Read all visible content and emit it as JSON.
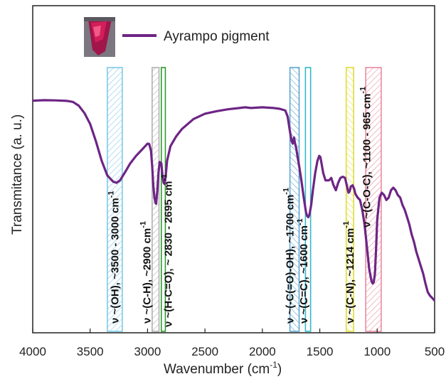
{
  "chart_data": {
    "type": "line",
    "xlabel": "Wavenumber (cm",
    "xlabel_sup": "-1",
    "xlabel_end": ")",
    "ylabel": "Transmitance (a. u.)",
    "xlim": [
      4000,
      500
    ],
    "ylim": [
      0,
      1
    ],
    "x_ticks": [
      4000,
      3500,
      3000,
      2500,
      2000,
      1500,
      1000,
      500
    ],
    "legend": {
      "position": "top-left",
      "label": "Ayrampo pigment",
      "color": "#6d2585"
    },
    "series": [
      {
        "name": "Ayrampo pigment",
        "color": "#6d2585",
        "x": [
          4000,
          3900,
          3800,
          3700,
          3650,
          3600,
          3550,
          3500,
          3450,
          3400,
          3350,
          3300,
          3270,
          3240,
          3200,
          3150,
          3100,
          3050,
          3020,
          3000,
          2985,
          2970,
          2960,
          2950,
          2940,
          2930,
          2925,
          2915,
          2905,
          2895,
          2880,
          2870,
          2860,
          2850,
          2840,
          2830,
          2800,
          2750,
          2700,
          2600,
          2500,
          2400,
          2300,
          2200,
          2150,
          2100,
          2000,
          1900,
          1850,
          1800,
          1780,
          1760,
          1745,
          1735,
          1725,
          1715,
          1705,
          1695,
          1680,
          1660,
          1640,
          1620,
          1610,
          1600,
          1590,
          1575,
          1560,
          1540,
          1520,
          1505,
          1495,
          1485,
          1470,
          1450,
          1420,
          1400,
          1380,
          1360,
          1340,
          1320,
          1300,
          1280,
          1265,
          1250,
          1240,
          1230,
          1214,
          1200,
          1190,
          1170,
          1150,
          1130,
          1110,
          1090,
          1070,
          1050,
          1040,
          1030,
          1020,
          1010,
          1000,
          980,
          960,
          940,
          920,
          900,
          880,
          860,
          840,
          820,
          800,
          780,
          760,
          740,
          720,
          700,
          680,
          660,
          640,
          620,
          600,
          580,
          560,
          540,
          520,
          500
        ],
        "values": [
          0.865,
          0.867,
          0.866,
          0.864,
          0.86,
          0.845,
          0.815,
          0.77,
          0.7,
          0.62,
          0.56,
          0.535,
          0.53,
          0.54,
          0.57,
          0.61,
          0.64,
          0.665,
          0.68,
          0.69,
          0.688,
          0.66,
          0.6,
          0.52,
          0.47,
          0.448,
          0.445,
          0.5,
          0.57,
          0.615,
          0.61,
          0.56,
          0.53,
          0.525,
          0.57,
          0.62,
          0.68,
          0.72,
          0.75,
          0.79,
          0.812,
          0.822,
          0.83,
          0.835,
          0.838,
          0.835,
          0.838,
          0.835,
          0.832,
          0.825,
          0.8,
          0.74,
          0.7,
          0.69,
          0.715,
          0.69,
          0.67,
          0.64,
          0.6,
          0.54,
          0.47,
          0.41,
          0.395,
          0.39,
          0.4,
          0.44,
          0.5,
          0.57,
          0.62,
          0.64,
          0.635,
          0.61,
          0.57,
          0.54,
          0.54,
          0.55,
          0.52,
          0.5,
          0.53,
          0.55,
          0.555,
          0.55,
          0.52,
          0.49,
          0.495,
          0.515,
          0.52,
          0.505,
          0.485,
          0.47,
          0.46,
          0.42,
          0.36,
          0.27,
          0.18,
          0.13,
          0.12,
          0.125,
          0.16,
          0.26,
          0.38,
          0.47,
          0.49,
          0.48,
          0.46,
          0.47,
          0.5,
          0.51,
          0.5,
          0.48,
          0.47,
          0.44,
          0.42,
          0.39,
          0.36,
          0.32,
          0.29,
          0.25,
          0.22,
          0.19,
          0.16,
          0.12,
          0.085,
          0.07,
          0.06,
          0.05
        ]
      }
    ],
    "bands": [
      {
        "label": "ν ~(OH), ~3500 - 3000 cm",
        "sup": "-1",
        "x_from": 3350,
        "x_to": 3220,
        "color": "#7ec8e8",
        "hatch": "diag"
      },
      {
        "label": "ν ~(C-H), ~2900 cm",
        "sup": "-1",
        "x_from": 2960,
        "x_to": 2900,
        "color": "#b0b0b0",
        "hatch": "diag"
      },
      {
        "label": "ν ~(H-C=O), ~ 2830 - 2695 cm",
        "sup": "-1",
        "x_from": 2880,
        "x_to": 2845,
        "color": "#2f9a2f",
        "hatch": "none"
      },
      {
        "label": "ν ~(-C(=O)-OH), ~1700 cm",
        "sup": "-1",
        "x_from": 1760,
        "x_to": 1680,
        "color": "#5fa5cf",
        "hatch": "diag-rev"
      },
      {
        "label": "ν ~(C=C), ~1600 cm",
        "sup": "-1",
        "x_from": 1625,
        "x_to": 1580,
        "color": "#33b8c8",
        "hatch": "none"
      },
      {
        "label": "ν ~(C-N), ~1214 cm",
        "sup": "-1",
        "x_from": 1270,
        "x_to": 1205,
        "color": "#dede3a",
        "hatch": "diag-rev"
      },
      {
        "label": "ν ~(C-O-C), ~1100 - 965 cm",
        "sup": "-1",
        "x_from": 1100,
        "x_to": 965,
        "color": "#e88aa0",
        "hatch": "diag"
      }
    ]
  }
}
